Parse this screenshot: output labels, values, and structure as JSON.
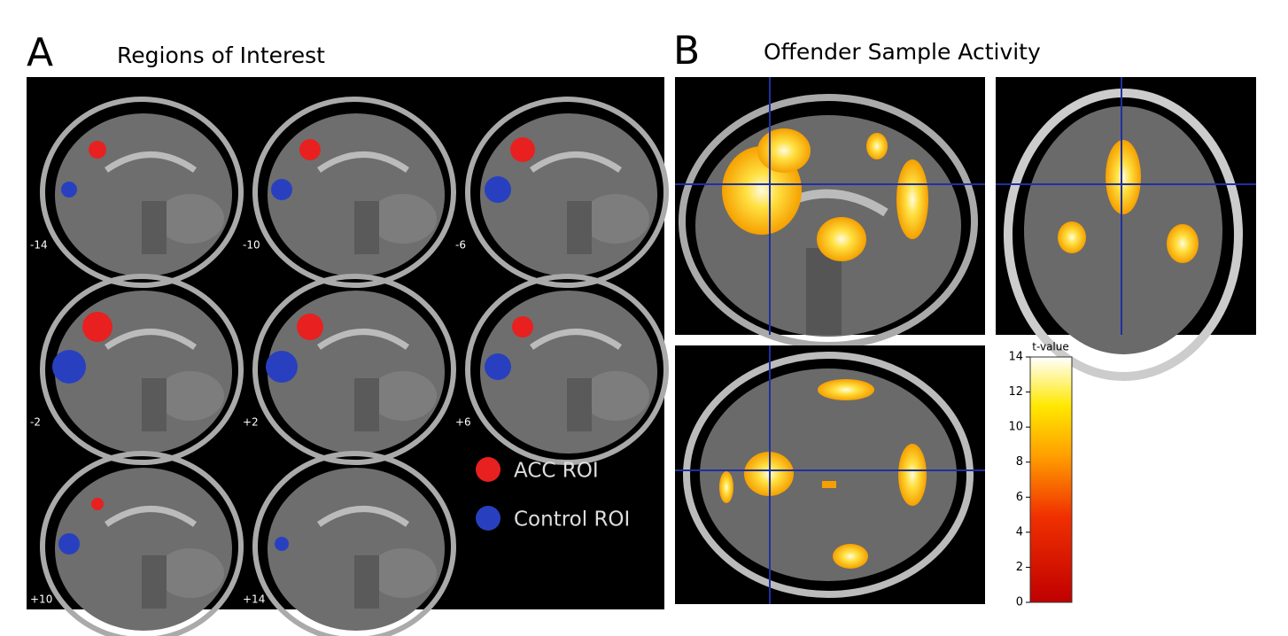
{
  "panel_a": {
    "letter": "A",
    "title": "Regions of Interest",
    "slices": [
      "-14",
      "-10",
      "-6",
      "-2",
      "+2",
      "+6",
      "+10",
      "+14"
    ],
    "legend": [
      "ACC ROI",
      "Control ROI"
    ]
  },
  "panel_b": {
    "letter": "B",
    "title": "Offender Sample Activity",
    "colorbar": {
      "label": "t-value",
      "range": [
        0,
        14
      ],
      "ticks": [
        0,
        2,
        4,
        6,
        8,
        10,
        12,
        14
      ]
    }
  }
}
